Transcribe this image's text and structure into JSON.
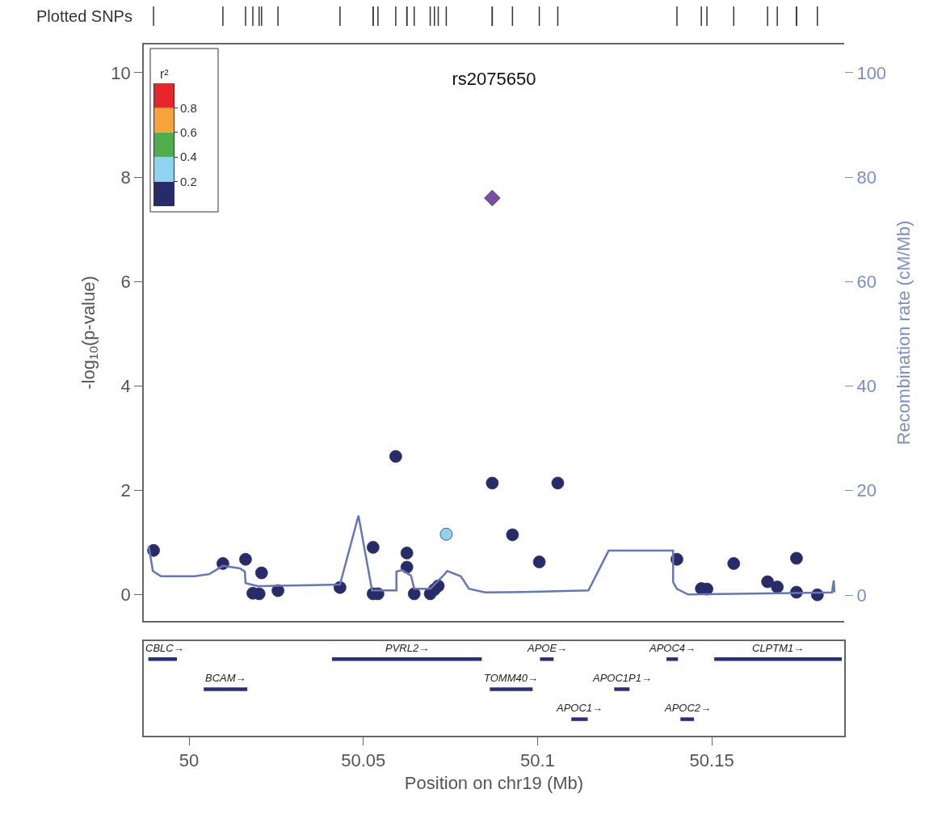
{
  "chart_data": [
    {
      "type": "scatter",
      "title": "rs2075650",
      "ylabel": "-log$_{10}$(p-value)",
      "y2label": "Recombination rate (cM/Mb)",
      "xlim": [
        49.987,
        50.188
      ],
      "xticks": [
        50,
        50.05,
        50.1,
        50.15
      ],
      "ylim": [
        -0.5,
        10.54
      ],
      "yticks": [
        0,
        2,
        4,
        6,
        8,
        10
      ],
      "y2lim": [
        -4.95,
        105.4
      ],
      "y2ticks": [
        0,
        20,
        40,
        60,
        80,
        100
      ],
      "tick_labels": "y",
      "annotations": [
        "Plotted SNPs"
      ],
      "series": [
        {
          "type": "scatter",
          "marker": "circle",
          "x": [
            49.9898,
            50.0097,
            50.0162,
            50.0208,
            50.0183,
            50.0201,
            50.0255,
            50.0433,
            50.0528,
            50.0528,
            50.0542,
            50.0593,
            50.0625,
            50.0625,
            50.0646,
            50.0692,
            50.0704,
            50.0715,
            50.0738,
            50.087,
            50.0928,
            50.1005,
            50.1058,
            50.14,
            50.147,
            50.1486,
            50.1563,
            50.166,
            50.1688,
            50.1743,
            50.1743,
            50.1803
          ],
          "values": [
            0.85,
            0.6,
            0.68,
            0.42,
            0.03,
            0.02,
            0.08,
            0.14,
            0.91,
            0.02,
            0.02,
            2.65,
            0.8,
            0.53,
            0.02,
            0.02,
            0.1,
            0.17,
            1.16,
            2.14,
            1.15,
            0.63,
            2.14,
            0.68,
            0.12,
            0.11,
            0.6,
            0.25,
            0.15,
            0.7,
            0.05,
            0.0
          ],
          "colors": [
            "#272b6b",
            "#272b6b",
            "#272b6b",
            "#272b6b",
            "#272b6b",
            "#272b6b",
            "#272b6b",
            "#272b6b",
            "#272b6b",
            "#272b6b",
            "#272b6b",
            "#272b6b",
            "#272b6b",
            "#272b6b",
            "#272b6b",
            "#272b6b",
            "#272b6b",
            "#272b6b",
            "#8fd3f0",
            "#272b6b",
            "#272b6b",
            "#272b6b",
            "#272b6b",
            "#272b6b",
            "#272b6b",
            "#272b6b",
            "#272b6b",
            "#272b6b",
            "#272b6b",
            "#272b6b",
            "#272b6b",
            "#272b6b"
          ]
        },
        {
          "type": "scatter",
          "marker": "diamond",
          "color": "#7a4ea5",
          "x": [
            50.087
          ],
          "values": [
            7.6
          ]
        },
        {
          "type": "line",
          "axis": "y2",
          "color": "#6477b9",
          "line_style": "solid",
          "x": [
            49.9884,
            49.9896,
            49.9919,
            50.0016,
            50.0058,
            50.0097,
            50.0146,
            50.016,
            50.0162,
            50.0197,
            50.0352,
            50.0433,
            50.0486,
            50.0525,
            50.0595,
            50.0595,
            50.0611,
            50.0637,
            50.0646,
            50.0692,
            50.0729,
            50.0741,
            50.078,
            50.0803,
            50.085,
            50.0961,
            50.1146,
            50.1204,
            50.1389,
            50.1389,
            50.14,
            50.1432,
            50.1845,
            50.185,
            50.1852
          ],
          "values": [
            9.4,
            4.6,
            3.6,
            3.6,
            4.0,
            5.6,
            5.1,
            4.5,
            2.3,
            1.7,
            1.9,
            2.0,
            15.2,
            0.9,
            0.9,
            4.5,
            4.8,
            3.7,
            1.2,
            1.2,
            3.7,
            4.6,
            3.6,
            1.2,
            0.5,
            0.6,
            0.9,
            8.5,
            8.5,
            2.5,
            1.2,
            0.1,
            0.5,
            2.8,
            0.5
          ]
        }
      ]
    },
    {
      "type": "bar",
      "orientation": "horizontal",
      "xlabel": "Position on chr19 (Mb)",
      "xlim": [
        49.987,
        50.188
      ],
      "xticks": [
        50,
        50.05,
        50.1,
        50.15
      ],
      "tick_labels": "x",
      "categories": [
        null,
        null,
        null
      ],
      "series": [
        {
          "name": "CBLC→",
          "color": "#2b2f7a",
          "base": [
            49.9883,
            null,
            null
          ],
          "values": [
            0.0082,
            null,
            null
          ]
        },
        {
          "name": "PVRL2→",
          "color": "#2b2f7a",
          "base": [
            50.041,
            null,
            null
          ],
          "values": [
            0.043,
            null,
            null
          ]
        },
        {
          "name": "APOE→",
          "color": "#2b2f7a",
          "base": [
            50.1007,
            null,
            null
          ],
          "values": [
            0.0039,
            null,
            null
          ]
        },
        {
          "name": "APOC4→",
          "color": "#2b2f7a",
          "base": [
            50.137,
            null,
            null
          ],
          "values": [
            0.0033,
            null,
            null
          ]
        },
        {
          "name": "CLPTM1→",
          "color": "#2b2f7a",
          "base": [
            50.1507,
            null,
            null
          ],
          "values": [
            0.0366,
            null,
            null
          ]
        },
        {
          "name": "BCAM→",
          "color": "#2b2f7a",
          "base": [
            null,
            50.0042,
            null
          ],
          "values": [
            null,
            0.0125,
            null
          ]
        },
        {
          "name": "TOMM40→",
          "color": "#2b2f7a",
          "base": [
            null,
            50.0863,
            null
          ],
          "values": [
            null,
            0.0123,
            null
          ]
        },
        {
          "name": "APOC1P1→",
          "color": "#2b2f7a",
          "base": [
            null,
            50.122,
            null
          ],
          "values": [
            null,
            0.0044,
            null
          ]
        },
        {
          "name": "APOC1→",
          "color": "#2b2f7a",
          "base": [
            null,
            null,
            50.1097
          ],
          "values": [
            null,
            null,
            0.0047
          ]
        },
        {
          "name": "APOC2→",
          "color": "#2b2f7a",
          "base": [
            null,
            null,
            50.141
          ],
          "values": [
            null,
            null,
            0.0039
          ]
        }
      ]
    },
    {
      "type": "bar",
      "stacked": true,
      "title": "r²",
      "categories": [
        null
      ],
      "ylim": [
        0,
        1
      ],
      "yticks": [
        0.2,
        0.4,
        0.6,
        0.8
      ],
      "tick_labels": "y",
      "series": [
        {
          "color": "#272b6b",
          "values": [
            0.2
          ]
        },
        {
          "color": "#8fd3f0",
          "values": [
            0.2
          ]
        },
        {
          "color": "#4fae4a",
          "values": [
            0.2
          ]
        },
        {
          "color": "#f6a33a",
          "values": [
            0.2
          ]
        },
        {
          "color": "#e7262b",
          "values": [
            0.2
          ]
        }
      ]
    }
  ]
}
